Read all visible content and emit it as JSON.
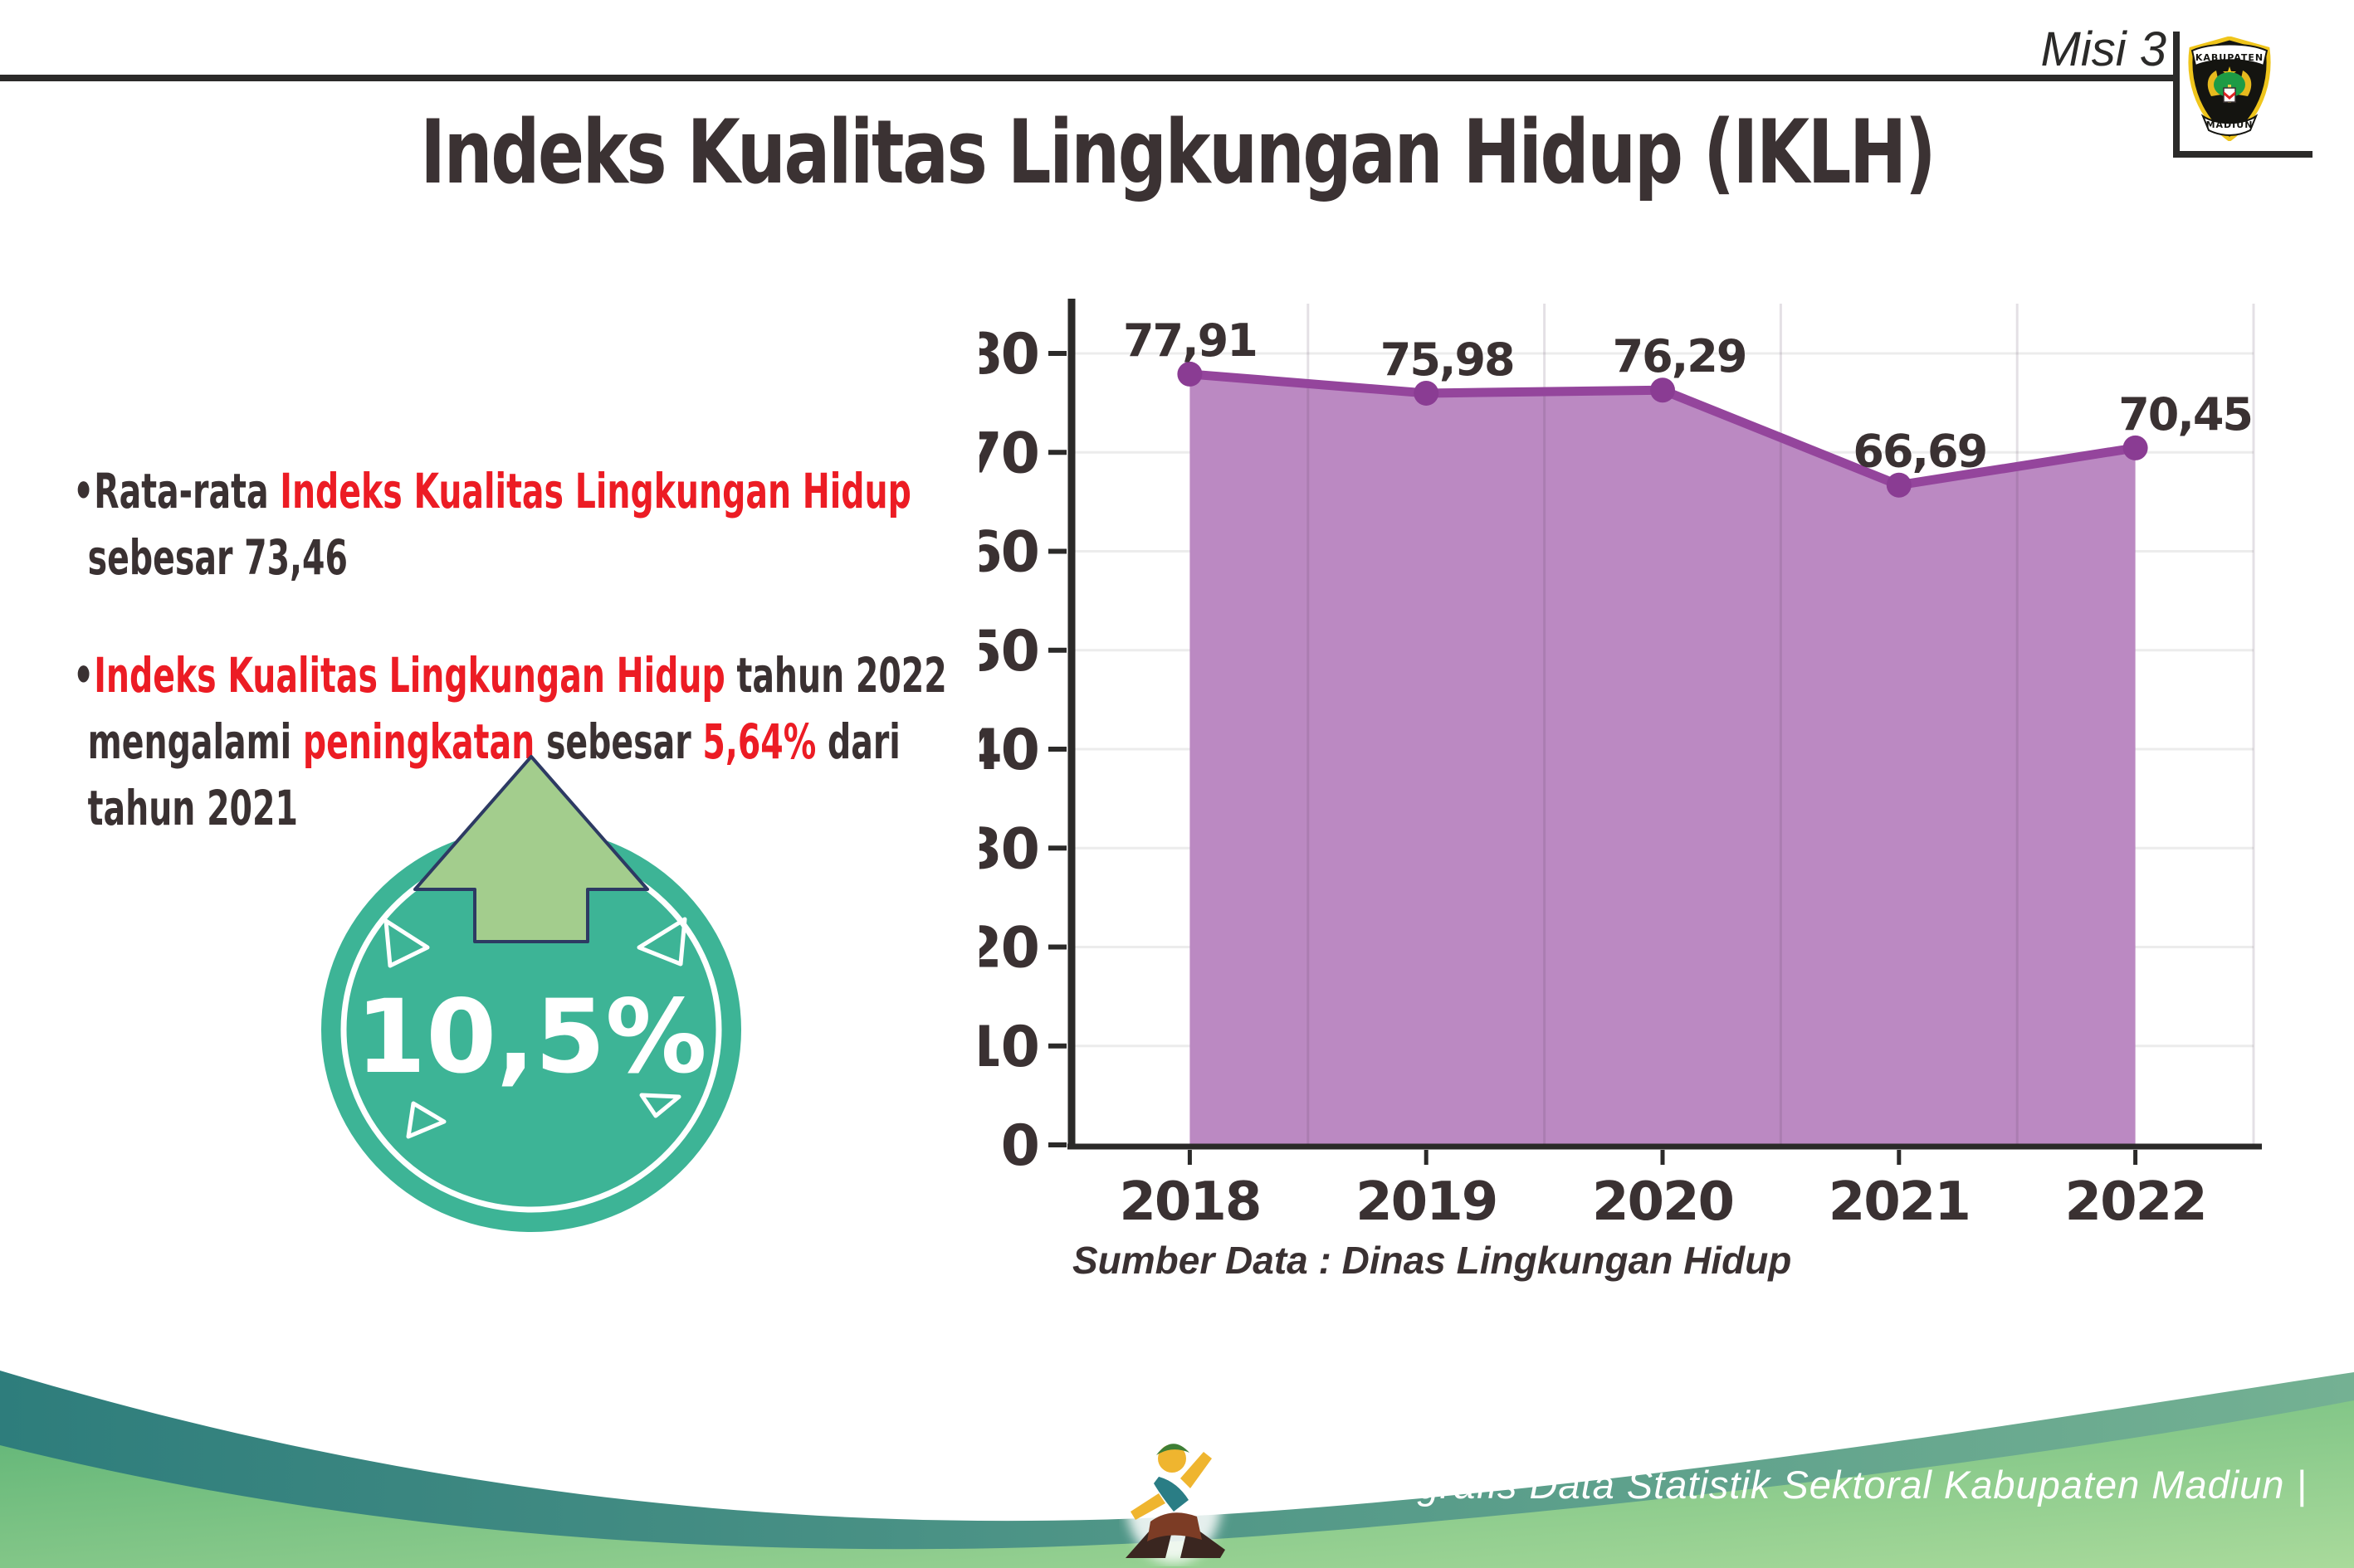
{
  "header": {
    "misi_label": "Misi 3",
    "title": "Indeks Kualitas Lingkungan Hidup (IKLH)"
  },
  "logo": {
    "top_text": "KABUPATEN",
    "bottom_text": "MADIUN"
  },
  "insights": {
    "bullet_char": "•",
    "bullet1": {
      "prefix": "Rata-rata ",
      "highlight": "Indeks Kualitas Lingkungan Hidup",
      "line2": "sebesar 73,46"
    },
    "bullet2": {
      "highlight1": "Indeks Kualitas Lingkungan Hidup",
      "after1": " tahun 2022",
      "line2_a": "mengalami ",
      "line2_hl1": "peningkatan",
      "line2_b": " sebesar ",
      "line2_hl2": "5,64%",
      "line2_c": " dari",
      "line3": "tahun 2021"
    }
  },
  "badge": {
    "value": "10,5%"
  },
  "chart_data": {
    "type": "area",
    "title": "",
    "xlabel": "",
    "ylabel": "",
    "categories": [
      "2018",
      "2019",
      "2020",
      "2021",
      "2022"
    ],
    "series": [
      {
        "name": "IKLH",
        "values": [
          77.91,
          75.98,
          76.29,
          66.69,
          70.45
        ]
      }
    ],
    "value_labels": [
      "77,91",
      "75,98",
      "76,29",
      "66,69",
      "70,45"
    ],
    "ylim": [
      0,
      80
    ],
    "ytick_step": 10,
    "grid": true,
    "legend": false,
    "colors": {
      "area": "#bb89c2",
      "line": "#94459c",
      "point": "#8a3c93",
      "label": "#3a3132",
      "axis": "#2b2a29",
      "grid_h": "#ececec",
      "grid_v": "rgba(90,60,95,0.16)"
    }
  },
  "source_note": "Sumber Data : Dinas Lingkungan Hidup",
  "footer": {
    "text": "Media Infografis Data Statistik Sektoral Kabupaten Madiun |"
  },
  "colors": {
    "accent_red": "#ec1c24",
    "text_dark": "#3a3132",
    "badge_teal": "#3db496",
    "arrow_green": "#a3cd8d",
    "arrow_outline": "#2d3a63",
    "wave_teal_dark": "#2e7d7c",
    "wave_teal_light": "#74b193",
    "wave_green_dark": "#5db375",
    "wave_green_light": "#a9da9b"
  }
}
